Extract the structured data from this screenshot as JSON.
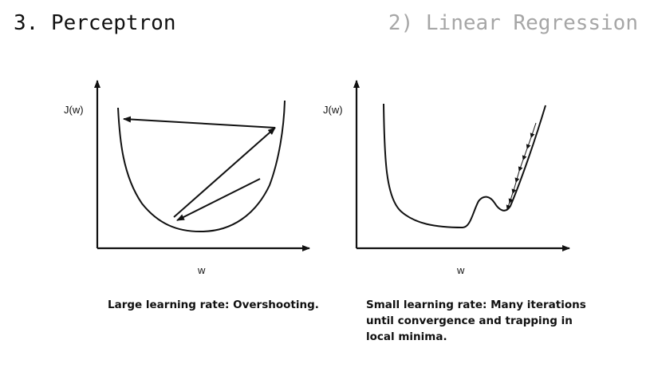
{
  "header": {
    "title": "3. Perceptron",
    "section": "2) Linear Regression"
  },
  "left_panel": {
    "y_label": "J(w)",
    "x_label": "w",
    "caption": "Large learning rate: Overshooting."
  },
  "right_panel": {
    "y_label": "J(w)",
    "x_label": "w",
    "caption_lines": [
      "Small learning rate: Many iterations",
      "until convergence and trapping in",
      "local minima."
    ]
  }
}
